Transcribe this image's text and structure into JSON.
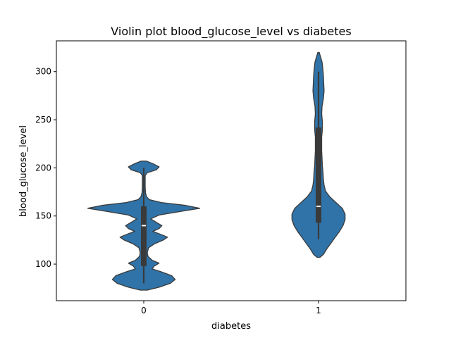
{
  "chart_data": {
    "type": "violin",
    "title": "Violin plot blood_glucose_level vs diabetes",
    "xlabel": "diabetes",
    "ylabel": "blood_glucose_level",
    "categories": [
      "0",
      "1"
    ],
    "ylim": [
      62,
      332
    ],
    "yticks": [
      100,
      150,
      200,
      250,
      300
    ],
    "grid": false,
    "violin_color": "#2f73a8",
    "edge_color": "#3a3a3a",
    "series": [
      {
        "category": "0",
        "summary": {
          "min": 80,
          "q1": 98,
          "median": 140,
          "q3": 160,
          "max": 200
        },
        "profile": [
          [
            73,
            0.05
          ],
          [
            76,
            0.22
          ],
          [
            80,
            0.38
          ],
          [
            84,
            0.45
          ],
          [
            88,
            0.4
          ],
          [
            92,
            0.25
          ],
          [
            95,
            0.12
          ],
          [
            98,
            0.15
          ],
          [
            101,
            0.22
          ],
          [
            104,
            0.12
          ],
          [
            108,
            0.06
          ],
          [
            112,
            0.05
          ],
          [
            117,
            0.07
          ],
          [
            121,
            0.15
          ],
          [
            125,
            0.28
          ],
          [
            128,
            0.34
          ],
          [
            131,
            0.24
          ],
          [
            134,
            0.13
          ],
          [
            137,
            0.22
          ],
          [
            140,
            0.26
          ],
          [
            143,
            0.19
          ],
          [
            147,
            0.1
          ],
          [
            151,
            0.22
          ],
          [
            155,
            0.55
          ],
          [
            158,
            0.8
          ],
          [
            161,
            0.6
          ],
          [
            164,
            0.25
          ],
          [
            167,
            0.08
          ],
          [
            170,
            0.04
          ],
          [
            174,
            0.025
          ],
          [
            180,
            0.02
          ],
          [
            186,
            0.02
          ],
          [
            192,
            0.02
          ],
          [
            195,
            0.05
          ],
          [
            198,
            0.18
          ],
          [
            201,
            0.22
          ],
          [
            204,
            0.14
          ],
          [
            207,
            0.04
          ]
        ]
      },
      {
        "category": "1",
        "summary": {
          "min": 126,
          "q1": 143,
          "median": 160,
          "q3": 242,
          "max": 300
        },
        "profile": [
          [
            107,
            0.02
          ],
          [
            110,
            0.07
          ],
          [
            116,
            0.12
          ],
          [
            122,
            0.18
          ],
          [
            128,
            0.24
          ],
          [
            134,
            0.3
          ],
          [
            140,
            0.35
          ],
          [
            146,
            0.38
          ],
          [
            152,
            0.38
          ],
          [
            158,
            0.34
          ],
          [
            164,
            0.25
          ],
          [
            170,
            0.16
          ],
          [
            176,
            0.1
          ],
          [
            182,
            0.08
          ],
          [
            188,
            0.07
          ],
          [
            195,
            0.065
          ],
          [
            202,
            0.055
          ],
          [
            210,
            0.05
          ],
          [
            218,
            0.045
          ],
          [
            225,
            0.045
          ],
          [
            232,
            0.045
          ],
          [
            240,
            0.055
          ],
          [
            248,
            0.055
          ],
          [
            256,
            0.045
          ],
          [
            264,
            0.05
          ],
          [
            272,
            0.07
          ],
          [
            280,
            0.08
          ],
          [
            288,
            0.075
          ],
          [
            296,
            0.07
          ],
          [
            304,
            0.06
          ],
          [
            310,
            0.05
          ],
          [
            315,
            0.03
          ],
          [
            320,
            0.01
          ]
        ]
      }
    ]
  }
}
